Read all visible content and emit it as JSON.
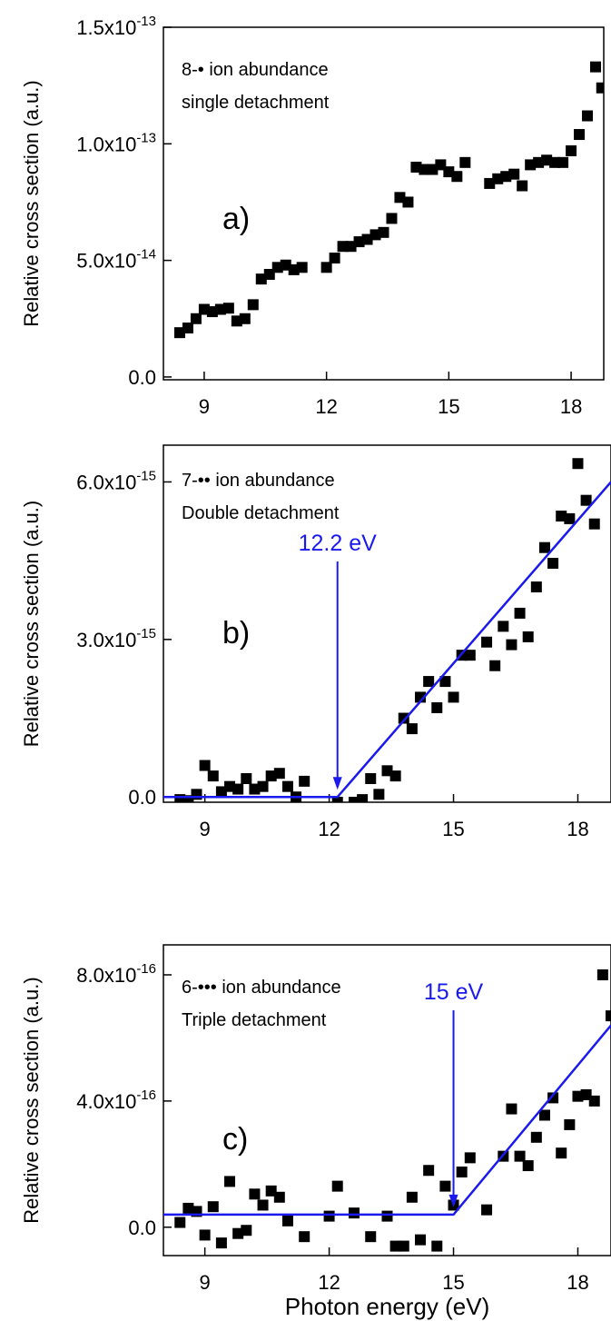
{
  "chart_data": [
    {
      "type": "scatter",
      "panel_label": "a)",
      "text": [
        "8-• ion abundance",
        "single detachment"
      ],
      "y_label": "Relative cross section (a.u.)",
      "xlim": [
        8,
        18.8
      ],
      "xticks": [
        9,
        12,
        15,
        18
      ],
      "ylim": [
        -1.2e-15,
        1.5e-13
      ],
      "yticks": [
        {
          "value": 0,
          "label": "0.0"
        },
        {
          "value": 5e-14,
          "label": "5.0x10-14"
        },
        {
          "value": 1e-13,
          "label": "1.0x10-13"
        },
        {
          "value": 1.5e-13,
          "label": "1.5x10-13"
        }
      ],
      "series": [
        {
          "type": "scatter",
          "color": "#000000",
          "x": [
            8.4,
            8.6,
            8.8,
            9.0,
            9.2,
            9.4,
            9.6,
            9.8,
            10.0,
            10.2,
            10.4,
            10.6,
            10.8,
            11.0,
            11.2,
            11.4,
            12.0,
            12.2,
            12.4,
            12.6,
            12.8,
            13.0,
            13.2,
            13.4,
            13.6,
            13.8,
            14.0,
            14.2,
            14.4,
            14.6,
            14.8,
            15.0,
            15.2,
            15.4,
            16.0,
            16.2,
            16.4,
            16.6,
            16.8,
            17.0,
            17.2,
            17.4,
            17.6,
            17.8,
            18.0,
            18.2,
            18.4,
            18.6,
            18.75
          ],
          "values": [
            1.9e-14,
            2.1e-14,
            2.5e-14,
            2.9e-14,
            2.8e-14,
            2.9e-14,
            2.95e-14,
            2.4e-14,
            2.5e-14,
            3.1e-14,
            4.2e-14,
            4.4e-14,
            4.7e-14,
            4.8e-14,
            4.6e-14,
            4.7e-14,
            4.7e-14,
            5.1e-14,
            5.6e-14,
            5.6e-14,
            5.8e-14,
            5.9e-14,
            6.1e-14,
            6.2e-14,
            6.8e-14,
            7.7e-14,
            7.5e-14,
            9e-14,
            8.9e-14,
            8.9e-14,
            9.1e-14,
            8.8e-14,
            8.6e-14,
            9.2e-14,
            8.3e-14,
            8.5e-14,
            8.6e-14,
            8.7e-14,
            8.2e-14,
            9.1e-14,
            9.2e-14,
            9.3e-14,
            9.2e-14,
            9.2e-14,
            9.7e-14,
            1.04e-13,
            1.12e-13,
            1.33e-13,
            1.24e-13
          ]
        }
      ]
    },
    {
      "type": "scatter",
      "panel_label": "b)",
      "text": [
        "7-•• ion abundance",
        "Double detachment"
      ],
      "y_label": "Relative cross section (a.u.)",
      "xlim": [
        8,
        18.8
      ],
      "xticks": [
        9,
        12,
        15,
        18
      ],
      "ylim": [
        -1e-16,
        6.7e-15
      ],
      "yticks": [
        {
          "value": 0,
          "label": "0.0"
        },
        {
          "value": 3e-15,
          "label": "3.0x10-15"
        },
        {
          "value": 6e-15,
          "label": "6.0x10-15"
        }
      ],
      "annotation": {
        "text": "12.2 eV",
        "x": 12.2,
        "color": "#1a1aee"
      },
      "series": [
        {
          "type": "scatter",
          "color": "#000000",
          "x": [
            8.4,
            8.6,
            8.8,
            9.0,
            9.2,
            9.4,
            9.6,
            9.8,
            10.0,
            10.2,
            10.4,
            10.6,
            10.8,
            11.0,
            11.2,
            11.4,
            12.2,
            12.6,
            12.8,
            13.0,
            13.2,
            13.4,
            13.6,
            13.8,
            14.0,
            14.2,
            14.4,
            14.6,
            14.8,
            15.0,
            15.2,
            15.4,
            15.8,
            16.0,
            16.2,
            16.4,
            16.6,
            16.8,
            17.0,
            17.2,
            17.4,
            17.6,
            17.8,
            18.0,
            18.2,
            18.4
          ],
          "values": [
            -5e-17,
            -7e-17,
            5e-17,
            6e-16,
            4e-16,
            1e-16,
            2e-16,
            1.5e-16,
            3.5e-16,
            1.5e-16,
            2e-16,
            4e-16,
            4.5e-16,
            2e-16,
            0,
            3e-16,
            -1e-16,
            -1e-16,
            -5e-17,
            3.5e-16,
            5e-17,
            5e-16,
            4e-16,
            1.5e-15,
            1.3e-15,
            1.9e-15,
            2.2e-15,
            1.7e-15,
            2.2e-15,
            1.9e-15,
            2.7e-15,
            2.7e-15,
            2.95e-15,
            2.5e-15,
            3.25e-15,
            2.9e-15,
            3.5e-15,
            3.05e-15,
            4e-15,
            4.75e-15,
            4.45e-15,
            5.35e-15,
            5.3e-15,
            6.35e-15,
            5.65e-15,
            5.2e-15
          ]
        },
        {
          "type": "line",
          "color": "#1a1aee",
          "x": [
            8,
            12.2,
            18.8
          ],
          "values": [
            0,
            0,
            6e-15
          ]
        }
      ]
    },
    {
      "type": "scatter",
      "panel_label": "c)",
      "text": [
        "6-••• ion abundance",
        "Triple detachment"
      ],
      "y_label": "Relative cross section (a.u.)",
      "x_label": "Photon energy (eV)",
      "xlim": [
        8,
        18.8
      ],
      "xticks": [
        9,
        12,
        15,
        18
      ],
      "ylim": [
        -9e-17,
        8.95e-16
      ],
      "yticks": [
        {
          "value": 0,
          "label": "0.0"
        },
        {
          "value": 4e-16,
          "label": "4.0x10-16"
        },
        {
          "value": 8e-16,
          "label": "8.0x10-16"
        }
      ],
      "annotation": {
        "text": "15 eV",
        "x": 15,
        "color": "#1a1aee"
      },
      "series": [
        {
          "type": "scatter",
          "color": "#000000",
          "x": [
            8.4,
            8.6,
            8.8,
            9.0,
            9.2,
            9.4,
            9.6,
            9.8,
            10.0,
            10.2,
            10.4,
            10.6,
            10.8,
            11.0,
            11.4,
            12.0,
            12.2,
            12.6,
            13.0,
            13.4,
            13.6,
            13.8,
            14.0,
            14.2,
            14.4,
            14.6,
            14.8,
            15.0,
            15.2,
            15.4,
            15.8,
            16.2,
            16.4,
            16.6,
            16.8,
            17.0,
            17.2,
            17.4,
            17.6,
            17.8,
            18.0,
            18.2,
            18.4,
            18.6,
            18.8
          ],
          "values": [
            1.5e-17,
            6e-17,
            5e-17,
            -2.5e-17,
            6.5e-17,
            -5e-17,
            1.45e-16,
            -2e-17,
            -1e-17,
            1.05e-16,
            7e-17,
            1.15e-16,
            9.5e-17,
            2e-17,
            -3e-17,
            3.5e-17,
            1.3e-16,
            4.5e-17,
            -3e-17,
            3.5e-17,
            -6e-17,
            -6e-17,
            9.5e-17,
            -4e-17,
            1.8e-16,
            -6e-17,
            1.3e-16,
            7e-17,
            1.75e-16,
            2.2e-16,
            5.5e-17,
            2.25e-16,
            3.75e-16,
            2.25e-16,
            1.95e-16,
            2.85e-16,
            3.55e-16,
            4.1e-16,
            2.35e-16,
            3.25e-16,
            4.15e-16,
            4.2e-16,
            4e-16,
            8e-16,
            6.7e-16
          ]
        },
        {
          "type": "line",
          "color": "#1a1aee",
          "x": [
            8,
            15,
            18.8
          ],
          "values": [
            4e-17,
            4e-17,
            6.4e-16
          ]
        }
      ]
    }
  ]
}
